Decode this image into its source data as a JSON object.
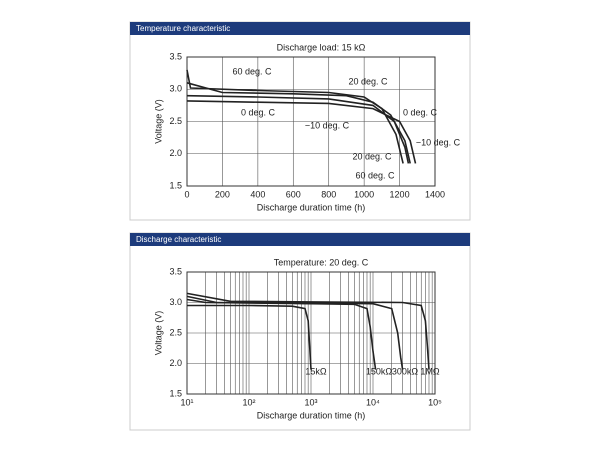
{
  "chart_data": [
    {
      "type": "line",
      "header": "Temperature characteristic",
      "title": "Discharge load: 15 kΩ",
      "xlabel": "Discharge duration time (h)",
      "ylabel": "Voltage (V)",
      "xlim": [
        0,
        1400
      ],
      "xticks": [
        0,
        200,
        400,
        600,
        800,
        1000,
        1200,
        1400
      ],
      "ylim": [
        1.5,
        3.5
      ],
      "yticks": [
        1.5,
        {
          "value": 2,
          "label": "2.0"
        },
        2.5,
        {
          "value": 3,
          "label": "3.0"
        },
        3.5
      ],
      "grid": true,
      "series": [
        {
          "name": "60 deg. C",
          "color": "#222222",
          "x": [
            0,
            20,
            400,
            800,
            1000,
            1100,
            1180,
            1220
          ],
          "values": [
            3.3,
            3.02,
            2.98,
            2.95,
            2.88,
            2.7,
            2.3,
            1.85
          ]
        },
        {
          "name": "20 deg. C",
          "color": "#222222",
          "x": [
            0,
            200,
            600,
            900,
            1050,
            1150,
            1230,
            1260
          ],
          "values": [
            3.1,
            2.95,
            2.93,
            2.9,
            2.8,
            2.6,
            2.2,
            1.85
          ]
        },
        {
          "name": "0 deg. C",
          "color": "#222222",
          "x": [
            0,
            400,
            800,
            1050,
            1170,
            1230,
            1250
          ],
          "values": [
            2.9,
            2.88,
            2.85,
            2.75,
            2.5,
            2.1,
            1.85
          ]
        },
        {
          "name": "−10 deg. C",
          "color": "#222222",
          "x": [
            0,
            400,
            800,
            1050,
            1200,
            1260,
            1290
          ],
          "values": [
            2.82,
            2.8,
            2.78,
            2.7,
            2.5,
            2.2,
            1.85
          ]
        }
      ]
    },
    {
      "type": "line",
      "header": "Discharge characteristic",
      "title": "Temperature: 20 deg. C",
      "xlabel": "Discharge duration time (h)",
      "ylabel": "Voltage (V)",
      "xscale": "log",
      "xlim": [
        10,
        100000
      ],
      "xticks": [
        {
          "value": 10,
          "label": "10¹"
        },
        {
          "value": 100,
          "label": "10²"
        },
        {
          "value": 1000,
          "label": "10³"
        },
        {
          "value": 10000,
          "label": "10⁴"
        },
        {
          "value": 100000,
          "label": "10⁵"
        }
      ],
      "ylim": [
        1.5,
        3.5
      ],
      "yticks": [
        1.5,
        {
          "value": 2,
          "label": "2.0"
        },
        2.5,
        {
          "value": 3,
          "label": "3.0"
        },
        3.5
      ],
      "grid": true,
      "series": [
        {
          "name": "15kΩ",
          "color": "#222222",
          "x": [
            10,
            100,
            500,
            800,
            900,
            950,
            1000
          ],
          "values": [
            2.95,
            2.95,
            2.94,
            2.9,
            2.7,
            2.3,
            1.9
          ]
        },
        {
          "name": "150kΩ",
          "color": "#222222",
          "x": [
            10,
            20,
            1000,
            5000,
            8000,
            9000,
            10000,
            11000
          ],
          "values": [
            3.05,
            3.0,
            2.98,
            2.97,
            2.9,
            2.6,
            2.2,
            1.9
          ]
        },
        {
          "name": "300kΩ",
          "color": "#222222",
          "x": [
            10,
            30,
            1000,
            10000,
            20000,
            25000,
            28000,
            30000
          ],
          "values": [
            3.1,
            3.0,
            2.99,
            2.98,
            2.9,
            2.5,
            2.1,
            1.9
          ]
        },
        {
          "name": "1MΩ",
          "color": "#222222",
          "x": [
            10,
            50,
            1000,
            30000,
            60000,
            70000,
            75000,
            80000
          ],
          "values": [
            3.15,
            3.02,
            3.01,
            3.0,
            2.95,
            2.7,
            2.3,
            1.9
          ]
        }
      ]
    }
  ]
}
